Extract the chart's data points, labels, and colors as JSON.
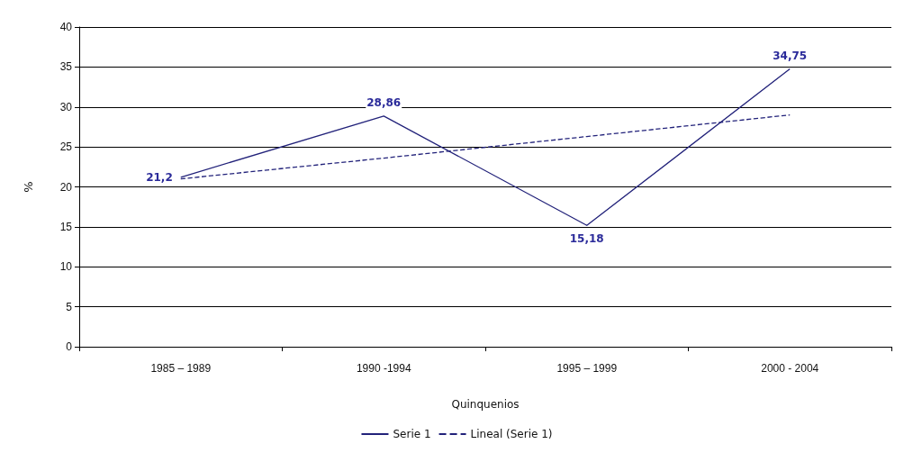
{
  "chart_data": {
    "type": "line",
    "xlabel": "Quinquenios",
    "ylabel": "%",
    "categories": [
      "1985 – 1989",
      "1990 -1994",
      "1995 – 1999",
      "2000 - 2004"
    ],
    "series": [
      {
        "name": "Serie 1",
        "color": "#22227a",
        "values": [
          21.2,
          28.86,
          15.18,
          34.75
        ],
        "value_labels": [
          "21,2",
          "28,86",
          "15,18",
          "34,75"
        ],
        "line_style": "solid"
      },
      {
        "name": "Lineal (Serie 1)",
        "color": "#22227a",
        "values": [
          21.0,
          23.6,
          26.3,
          29.0
        ],
        "line_style": "dashed"
      }
    ],
    "ylim": [
      0,
      40
    ],
    "yticks": [
      0,
      5,
      10,
      15,
      20,
      25,
      30,
      35,
      40
    ],
    "grid": "y",
    "legend": "bottom",
    "marker": "none"
  }
}
